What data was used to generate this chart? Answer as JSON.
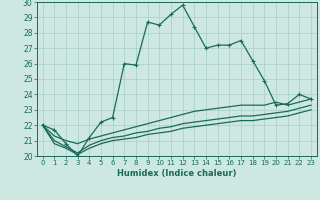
{
  "xlabel": "Humidex (Indice chaleur)",
  "bg_color": "#cce8e0",
  "grid_color": "#a8cfc8",
  "line_color": "#1a6a5a",
  "xlim": [
    -0.5,
    23.5
  ],
  "ylim": [
    20,
    30
  ],
  "yticks": [
    20,
    21,
    22,
    23,
    24,
    25,
    26,
    27,
    28,
    29,
    30
  ],
  "xticks": [
    0,
    1,
    2,
    3,
    4,
    5,
    6,
    7,
    8,
    9,
    10,
    11,
    12,
    13,
    14,
    15,
    16,
    17,
    18,
    19,
    20,
    21,
    22,
    23
  ],
  "series": [
    {
      "x": [
        0,
        1,
        2,
        3,
        4,
        5,
        6,
        7,
        8,
        9,
        10,
        11,
        12,
        13,
        14,
        15,
        16,
        17,
        18,
        19,
        20,
        21,
        22,
        23
      ],
      "y": [
        22.0,
        21.7,
        20.8,
        20.0,
        21.2,
        22.2,
        22.5,
        26.0,
        25.9,
        28.7,
        28.5,
        29.2,
        29.8,
        28.4,
        27.0,
        27.2,
        27.2,
        27.5,
        26.2,
        24.9,
        23.3,
        23.4,
        24.0,
        23.7
      ],
      "marker": true
    },
    {
      "x": [
        0,
        2,
        3,
        4,
        5,
        19,
        20,
        21,
        22,
        23
      ],
      "y": [
        22.0,
        21.0,
        20.8,
        21.1,
        21.3,
        23.3,
        23.5,
        23.3,
        23.5,
        23.7
      ],
      "marker": false
    },
    {
      "x": [
        0,
        2,
        3,
        4,
        5,
        19,
        20,
        21,
        22,
        23
      ],
      "y": [
        22.0,
        20.6,
        20.2,
        20.7,
        21.0,
        22.7,
        22.8,
        22.9,
        23.1,
        23.3
      ],
      "marker": false
    },
    {
      "x": [
        0,
        2,
        3,
        4,
        5,
        19,
        20,
        21,
        22,
        23
      ],
      "y": [
        22.0,
        20.5,
        20.1,
        20.5,
        20.8,
        22.4,
        22.5,
        22.6,
        22.8,
        23.0
      ],
      "marker": false
    }
  ],
  "series_full": [
    {
      "x": [
        0,
        1,
        2,
        3,
        4,
        5,
        6,
        7,
        8,
        9,
        10,
        11,
        12,
        13,
        14,
        15,
        16,
        17,
        18,
        19,
        20,
        21,
        22,
        23
      ],
      "y": [
        22.0,
        21.7,
        20.8,
        20.0,
        21.2,
        22.2,
        22.5,
        26.0,
        25.9,
        28.7,
        28.5,
        29.2,
        29.8,
        28.4,
        27.0,
        27.2,
        27.2,
        27.5,
        26.2,
        24.9,
        23.3,
        23.4,
        24.0,
        23.7
      ]
    },
    {
      "x": [
        0,
        1,
        2,
        3,
        4,
        5,
        6,
        7,
        8,
        9,
        10,
        11,
        12,
        13,
        14,
        15,
        16,
        17,
        18,
        19,
        20,
        21,
        22,
        23
      ],
      "y": [
        22.0,
        21.3,
        21.0,
        20.8,
        21.1,
        21.3,
        21.5,
        21.7,
        21.9,
        22.1,
        22.3,
        22.5,
        22.7,
        22.9,
        23.0,
        23.1,
        23.2,
        23.3,
        23.3,
        23.3,
        23.5,
        23.3,
        23.5,
        23.7
      ]
    },
    {
      "x": [
        0,
        1,
        2,
        3,
        4,
        5,
        6,
        7,
        8,
        9,
        10,
        11,
        12,
        13,
        14,
        15,
        16,
        17,
        18,
        19,
        20,
        21,
        22,
        23
      ],
      "y": [
        22.0,
        21.0,
        20.6,
        20.2,
        20.7,
        21.0,
        21.2,
        21.3,
        21.5,
        21.6,
        21.8,
        21.9,
        22.1,
        22.2,
        22.3,
        22.4,
        22.5,
        22.6,
        22.6,
        22.7,
        22.8,
        22.9,
        23.1,
        23.3
      ]
    },
    {
      "x": [
        0,
        1,
        2,
        3,
        4,
        5,
        6,
        7,
        8,
        9,
        10,
        11,
        12,
        13,
        14,
        15,
        16,
        17,
        18,
        19,
        20,
        21,
        22,
        23
      ],
      "y": [
        22.0,
        20.8,
        20.5,
        20.1,
        20.5,
        20.8,
        21.0,
        21.1,
        21.2,
        21.4,
        21.5,
        21.6,
        21.8,
        21.9,
        22.0,
        22.1,
        22.2,
        22.3,
        22.3,
        22.4,
        22.5,
        22.6,
        22.8,
        23.0
      ]
    }
  ],
  "marker_symbol": "+",
  "markersize": 3.5,
  "linewidth": 0.9
}
